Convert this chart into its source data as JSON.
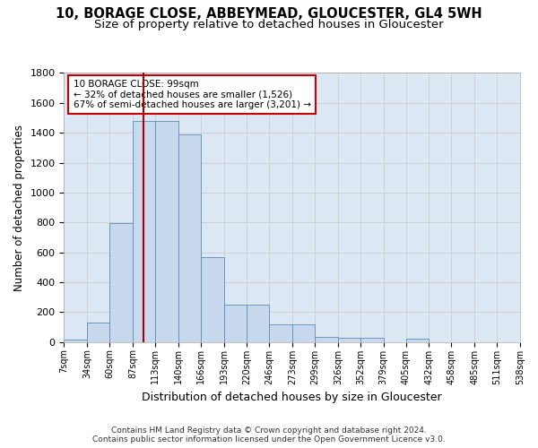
{
  "title1": "10, BORAGE CLOSE, ABBEYMEAD, GLOUCESTER, GL4 5WH",
  "title2": "Size of property relative to detached houses in Gloucester",
  "xlabel": "Distribution of detached houses by size in Gloucester",
  "ylabel": "Number of detached properties",
  "annotation_line1": "10 BORAGE CLOSE: 99sqm",
  "annotation_line2": "← 32% of detached houses are smaller (1,526)",
  "annotation_line3": "67% of semi-detached houses are larger (3,201) →",
  "footer1": "Contains HM Land Registry data © Crown copyright and database right 2024.",
  "footer2": "Contains public sector information licensed under the Open Government Licence v3.0.",
  "bin_edges": [
    7,
    34,
    60,
    87,
    113,
    140,
    166,
    193,
    220,
    246,
    273,
    299,
    326,
    352,
    379,
    405,
    432,
    458,
    485,
    511,
    538
  ],
  "bar_heights": [
    15,
    130,
    795,
    1480,
    1480,
    1390,
    570,
    250,
    250,
    115,
    115,
    35,
    30,
    30,
    0,
    20,
    0,
    0,
    0,
    0
  ],
  "bar_color": "#c9d9ed",
  "bar_edgecolor": "#5b8db8",
  "vline_x": 99,
  "vline_color": "#aa0000",
  "ylim": [
    0,
    1800
  ],
  "yticks": [
    0,
    200,
    400,
    600,
    800,
    1000,
    1200,
    1400,
    1600,
    1800
  ],
  "grid_color": "#cccccc",
  "background_color": "#dde8f5",
  "title1_fontsize": 10.5,
  "title2_fontsize": 9.5,
  "xlabel_fontsize": 9,
  "ylabel_fontsize": 8.5,
  "annotation_box_color": "#ffffff",
  "annotation_box_edgecolor": "#cc0000",
  "tick_labels": [
    "7sqm",
    "34sqm",
    "60sqm",
    "87sqm",
    "113sqm",
    "140sqm",
    "166sqm",
    "193sqm",
    "220sqm",
    "246sqm",
    "273sqm",
    "299sqm",
    "326sqm",
    "352sqm",
    "379sqm",
    "405sqm",
    "432sqm",
    "458sqm",
    "485sqm",
    "511sqm",
    "538sqm"
  ]
}
